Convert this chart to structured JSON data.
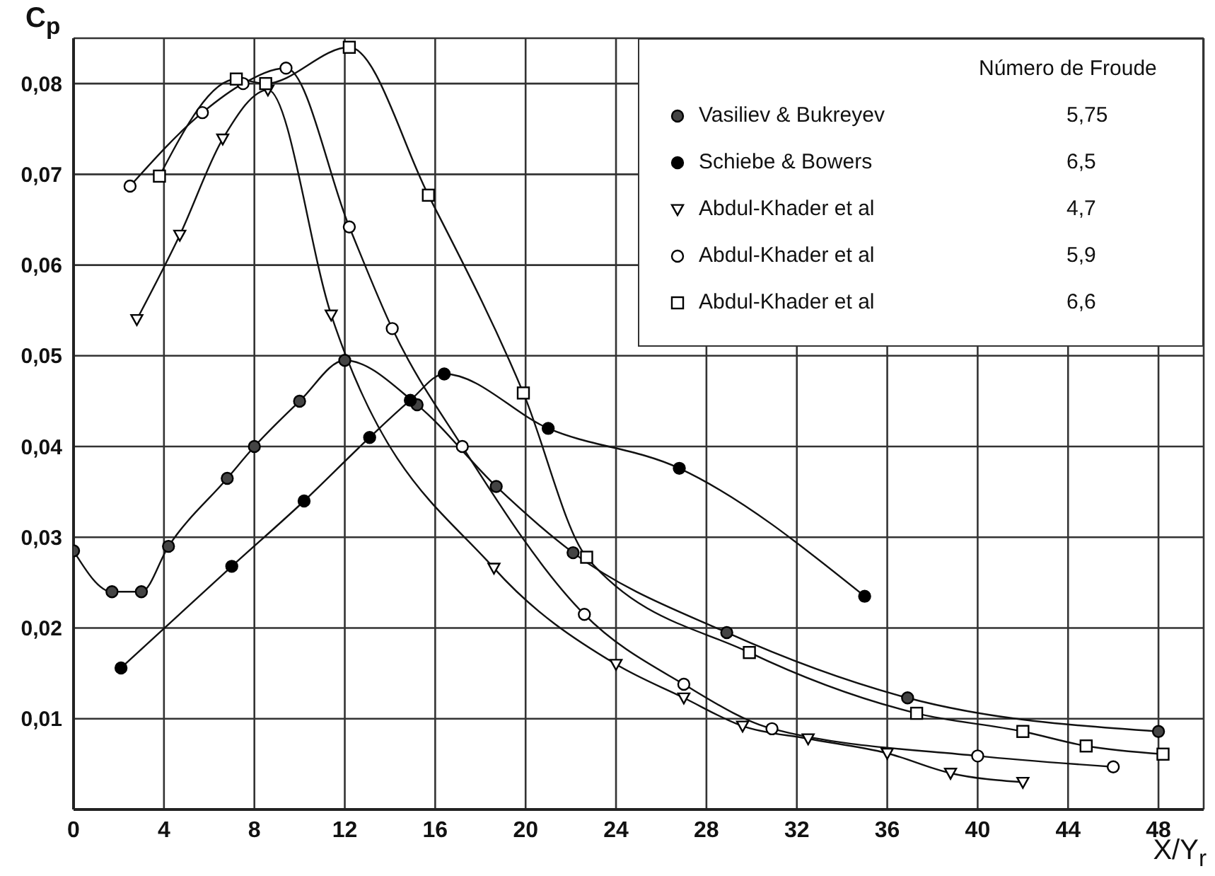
{
  "chart_data": {
    "type": "line",
    "xlabel": "X/Y$_{r}$",
    "ylabel": "C$_{p}$",
    "legend_title": "Número de Froude",
    "annotations": [
      "5,75",
      "6,5",
      "4,7",
      "5,9",
      "6,6"
    ],
    "xlim": [
      0,
      50
    ],
    "xticks": [
      0,
      4,
      8,
      12,
      16,
      20,
      24,
      28,
      32,
      36,
      40,
      44,
      48
    ],
    "ylim": [
      0,
      0.085
    ],
    "yticks": [
      {
        "value": 0.01,
        "label": "0,01"
      },
      {
        "value": 0.02,
        "label": "0,02"
      },
      {
        "value": 0.03,
        "label": "0,03"
      },
      {
        "value": 0.04,
        "label": "0,04"
      },
      {
        "value": 0.05,
        "label": "0,05"
      },
      {
        "value": 0.06,
        "label": "0,06"
      },
      {
        "value": 0.07,
        "label": "0,07"
      },
      {
        "value": 0.08,
        "label": "0,08"
      }
    ],
    "grid": true,
    "legend": "top right",
    "line_style": "solid",
    "series": [
      {
        "name": "Vasiliev & Bukreyev",
        "color": "#444444",
        "marker": "circle",
        "x": [
          0,
          1.7,
          3,
          4.2,
          6.8,
          8,
          10,
          12,
          15.2,
          18.7,
          22.1,
          28.9,
          36.9,
          48
        ],
        "values": [
          0.0285,
          0.024,
          0.024,
          0.029,
          0.0365,
          0.04,
          0.045,
          0.0495,
          0.0446,
          0.0356,
          0.0283,
          0.0195,
          0.0123,
          0.0086
        ]
      },
      {
        "name": "Schiebe & Bowers",
        "color": "#000000",
        "marker": "circle",
        "x": [
          2.1,
          7,
          10.2,
          13.1,
          14.9,
          16.4,
          21,
          26.8,
          35
        ],
        "values": [
          0.0156,
          0.0268,
          0.034,
          0.041,
          0.0451,
          0.048,
          0.042,
          0.0376,
          0.0235
        ]
      },
      {
        "name": "Abdul-Khader et al",
        "color": "#ffffff",
        "marker": "triangle",
        "x": [
          2.8,
          4.7,
          6.6,
          8.6,
          11.4,
          18.6,
          24,
          27,
          29.6,
          32.5,
          36,
          38.8,
          42
        ],
        "values": [
          0.054,
          0.0633,
          0.0739,
          0.0793,
          0.0545,
          0.0266,
          0.016,
          0.0123,
          0.0092,
          0.0078,
          0.0062,
          0.004,
          0.003
        ]
      },
      {
        "name": "Abdul-Khader et al",
        "color": "#ffffff",
        "marker": "circle",
        "x": [
          2.5,
          5.7,
          7.5,
          9.4,
          12.2,
          14.1,
          17.2,
          22.6,
          27,
          30.9,
          40,
          46
        ],
        "values": [
          0.0687,
          0.0768,
          0.08,
          0.0817,
          0.0642,
          0.053,
          0.04,
          0.0215,
          0.0138,
          0.0089,
          0.0059,
          0.0047
        ]
      },
      {
        "name": "Abdul-Khader et al",
        "color": "#ffffff",
        "marker": "square",
        "x": [
          3.8,
          7.2,
          8.5,
          12.2,
          15.7,
          19.9,
          22.7,
          29.9,
          37.3,
          42,
          44.8,
          48.2
        ],
        "values": [
          0.0698,
          0.0805,
          0.08,
          0.084,
          0.0677,
          0.0459,
          0.0278,
          0.0173,
          0.0106,
          0.0086,
          0.007,
          0.0061
        ]
      }
    ]
  }
}
